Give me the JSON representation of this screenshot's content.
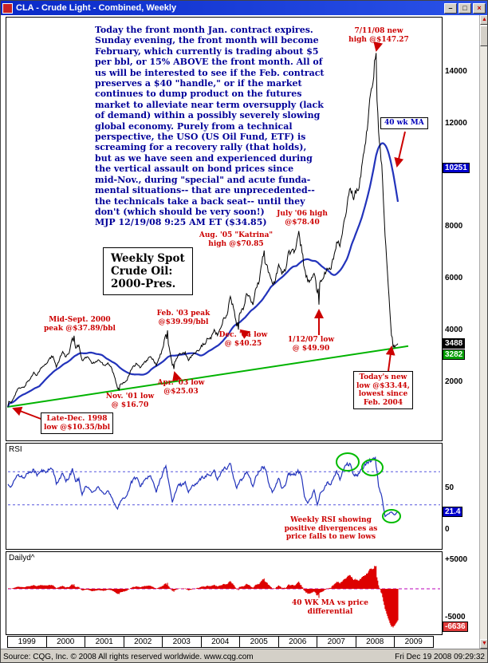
{
  "window": {
    "title": "CLA - Crude Light - Combined, Weekly",
    "statusbar": {
      "left": "Source: CQG, Inc. © 2008 All rights reserved worldwide. www.cqg.com",
      "right": "Fri Dec 19 2008 09:29:32"
    }
  },
  "icons": {
    "minimize": "–",
    "maximize": "□",
    "close": "×",
    "scroll_up": "▲",
    "scroll_down": "▼"
  },
  "timeline_years": [
    "1999",
    "2000",
    "2001",
    "2002",
    "2003",
    "2004",
    "2005",
    "2006",
    "2007",
    "2008",
    "2009"
  ],
  "price_axis": {
    "ticks": [
      {
        "text": "14000",
        "value": 14000
      },
      {
        "text": "12000",
        "value": 12000
      },
      {
        "text": "8000",
        "value": 8000
      },
      {
        "text": "6000",
        "value": 6000
      },
      {
        "text": "4000",
        "value": 4000
      },
      {
        "text": "2000",
        "value": 2000
      }
    ],
    "badges": [
      {
        "text": "10251",
        "value": 10251,
        "bg": "#0000cc"
      },
      {
        "text": "3488",
        "value": 3488,
        "bg": "#000000"
      },
      {
        "text": "3282",
        "value": 3282,
        "bg": "#00a000"
      }
    ]
  },
  "rsi_axis": {
    "ticks": [
      {
        "text": "50",
        "value": 50
      },
      {
        "text": "0",
        "value": 0
      }
    ],
    "badges": [
      {
        "text": "21.4",
        "value": 21.4,
        "bg": "#0000cc"
      }
    ]
  },
  "daily_axis": {
    "ticks": [
      {
        "text": "+5000",
        "value": 5000
      },
      {
        "text": "-5000",
        "value": -5000
      }
    ],
    "badges": [
      {
        "text": "-6636",
        "value": -6636,
        "bg": "#e03a3a"
      }
    ]
  },
  "annotations": {
    "commentary": "Today the front month Jan. contract expires.\nSunday evening, the front month will become\nFebruary, which currently is trading about $5\nper bbl, or 15% ABOVE the front month. All of\nus will be interested to see if the Feb. contract\npreserves a $40 \"handle,\" or if the market\ncontinues to dump product on the futures\nmarket to alleviate near term oversupply (lack\nof demand) within a possibly severely slowing\nglobal economy. Purely from a technical\nperspective, the USO (US Oil Fund, ETF) is\nscreaming for a recovery rally (that holds),\nbut as we have seen and experienced during\nthe vertical assault on bond prices since\nmid-Nov., during \"special\" and acute funda-\nmental situations-- that are unprecedented--\nthe technicals take a back seat-- until they\ndon't (which should be very soon!)\nMJP 12/19/08  9:25 AM ET ($34.85)",
    "weekly_spot_box": "Weekly Spot\nCrude Oil:\n2000-Pres.",
    "high_2008": "7/11/08 new\nhigh @$147.27",
    "ma_label": "40 wk MA",
    "high_jul06": "July '06 high\n@$78.40",
    "high_aug05": "Aug. '05 \"Katrina\"\nhigh @$70.85",
    "peak_feb03": "Feb. '03 peak\n@$39.99/bbl",
    "peak_sep00": "Mid-Sept. 2000\npeak @$37.89/bbl",
    "low_dec04": "Dec. '04 low\n@ $40.25",
    "low_jan07": "1/12/07 low\n@ $49.90",
    "low_apr03": "Apr. '03 low\n@$25.03",
    "low_nov01": "Nov. '01 low\n@ $16.70",
    "low_dec98": "Late-Dec. 1998\nlow @$10.35/bbl",
    "todays_low": "Today's new\nlow @$33.44,\nlowest since\nFeb. 2004",
    "rsi_label": "RSI",
    "rsi_note": "Weekly RSI showing\npositive divergences as\nprice falls to new lows",
    "daily_label": "Dailyd^",
    "daily_note": "40 WK MA vs price\ndifferential"
  },
  "chart_data": [
    {
      "type": "line",
      "title": "Weekly Spot Crude Oil: 2000-Pres.",
      "instrument": "CLA - Crude Light - Combined, Weekly",
      "x_start": 1999.0,
      "x_step": 0.08333,
      "xlabel_years": [
        1999,
        2000,
        2001,
        2002,
        2003,
        2004,
        2005,
        2006,
        2007,
        2008,
        2009
      ],
      "y_axis_ticks_points": [
        14000,
        12000,
        8000,
        6000,
        4000,
        2000
      ],
      "last_price_points": 3488,
      "ma_value_points": 10251,
      "trendline_value_points": 3282,
      "series": [
        {
          "name": "CLA weekly close ($/bbl, monthly anchors)",
          "values": [
            12.5,
            12.0,
            14.5,
            17.3,
            17.7,
            17.9,
            20.1,
            21.3,
            23.8,
            22.6,
            25.0,
            26.1,
            27.2,
            29.4,
            29.9,
            25.7,
            28.8,
            31.8,
            29.7,
            31.3,
            37.0,
            33.1,
            34.3,
            28.4,
            29.6,
            29.4,
            27.2,
            27.5,
            28.6,
            27.6,
            26.4,
            27.4,
            25.9,
            22.2,
            17.5,
            19.3,
            19.7,
            20.7,
            24.4,
            26.3,
            27.0,
            25.5,
            26.9,
            28.4,
            29.7,
            28.9,
            26.3,
            29.4,
            33.0,
            38.5,
            33.5,
            26.5,
            28.1,
            30.7,
            30.8,
            31.6,
            28.3,
            30.3,
            31.1,
            32.1,
            34.2,
            34.7,
            36.8,
            36.7,
            40.3,
            38.0,
            40.8,
            44.9,
            45.9,
            53.1,
            48.5,
            41.5,
            46.8,
            48.0,
            54.2,
            53.2,
            49.8,
            56.4,
            59.0,
            68.5,
            65.5,
            62.3,
            58.3,
            59.4,
            65.5,
            61.6,
            62.9,
            70.2,
            70.9,
            70.9,
            76.5,
            73.1,
            63.9,
            58.9,
            59.4,
            62.0,
            54.6,
            59.3,
            60.6,
            64.0,
            63.5,
            67.5,
            74.1,
            72.4,
            79.9,
            85.8,
            94.6,
            91.7,
            92.9,
            95.4,
            105.4,
            112.6,
            125.4,
            133.9,
            145.0,
            116.7,
            104.1,
            76.6,
            57.3,
            38.0,
            33.44,
            34.85
          ]
        },
        {
          "name": "40-week moving average",
          "derived": "trailing mean of 40 weekly points"
        }
      ],
      "key_points": [
        {
          "x": 1998.98,
          "price": 10.35,
          "label": "Late-Dec. 1998 low @$10.35/bbl"
        },
        {
          "x": 2000.71,
          "price": 37.89,
          "label": "Mid-Sept. 2000 peak @$37.89/bbl"
        },
        {
          "x": 2001.88,
          "price": 16.7,
          "label": "Nov. '01 low @ $16.70"
        },
        {
          "x": 2003.12,
          "price": 39.99,
          "label": "Feb. '03 peak @$39.99/bbl"
        },
        {
          "x": 2003.29,
          "price": 25.03,
          "label": "Apr. '03 low @$25.03"
        },
        {
          "x": 2004.96,
          "price": 40.25,
          "label": "Dec. '04 low @ $40.25"
        },
        {
          "x": 2005.62,
          "price": 70.85,
          "label": "Aug. '05 Katrina high @$70.85"
        },
        {
          "x": 2006.53,
          "price": 78.4,
          "label": "July '06 high @$78.40"
        },
        {
          "x": 2007.04,
          "price": 49.9,
          "label": "1/12/07 low @ $49.90"
        },
        {
          "x": 2008.53,
          "price": 147.27,
          "label": "7/11/08 new high @$147.27"
        },
        {
          "x": 2008.96,
          "price": 33.44,
          "label": "Today's new low @$33.44, lowest since Feb. 2004"
        }
      ],
      "trendline": {
        "x1": 1998.98,
        "price1": 10.35,
        "x2": 2009.35,
        "price2": 33.9,
        "color": "#00b300"
      }
    },
    {
      "type": "line",
      "name": "RSI (weekly)",
      "overbought": 70,
      "oversold": 30,
      "last": 21.4,
      "ticks": [
        50,
        0
      ],
      "values": [
        55,
        52,
        60,
        66,
        64,
        62,
        68,
        70,
        73,
        65,
        70,
        72,
        70,
        73,
        72,
        55,
        62,
        68,
        58,
        63,
        74,
        58,
        62,
        42,
        52,
        51,
        45,
        47,
        52,
        47,
        43,
        47,
        40,
        32,
        25,
        35,
        38,
        42,
        55,
        62,
        63,
        52,
        58,
        62,
        65,
        58,
        45,
        58,
        68,
        77,
        55,
        33,
        45,
        55,
        54,
        58,
        45,
        52,
        55,
        58,
        63,
        62,
        67,
        65,
        72,
        60,
        68,
        74,
        73,
        80,
        62,
        50,
        60,
        62,
        70,
        63,
        52,
        65,
        70,
        76,
        72,
        55,
        45,
        52,
        62,
        50,
        53,
        68,
        67,
        66,
        72,
        65,
        40,
        32,
        38,
        48,
        30,
        45,
        48,
        57,
        54,
        62,
        71,
        60,
        72,
        78,
        80,
        68,
        65,
        68,
        74,
        78,
        82,
        85,
        87,
        52,
        40,
        16,
        19,
        21.4,
        18,
        21.4
      ]
    },
    {
      "type": "bar",
      "name": "40 WK MA vs price differential",
      "derived": "(price - 40wk MA) x 100",
      "ticks": [
        5000,
        -5000
      ],
      "last": -6636
    }
  ]
}
